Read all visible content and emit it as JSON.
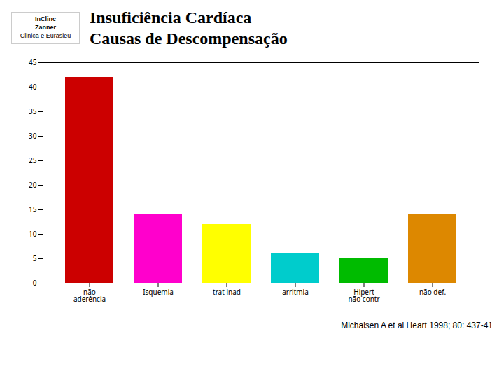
{
  "chart_data": {
    "type": "bar",
    "title": "Insuficiência Cardíaca",
    "subtitle": "Causas de Descompensação",
    "categories": [
      "não\naderência",
      "Isquemia",
      "trat inad",
      "arritmia",
      "Hipert\nnão contr",
      "não def."
    ],
    "values": [
      42,
      14,
      12,
      6,
      5,
      14
    ],
    "colors": [
      "#cc0000",
      "#ff00cc",
      "#ffff00",
      "#00cccc",
      "#00bb00",
      "#dd8800"
    ],
    "ylim": [
      0,
      45
    ],
    "yticks": [
      0,
      5,
      10,
      15,
      20,
      25,
      30,
      35,
      40,
      45
    ],
    "grid": false,
    "annotations": [
      "InClinc",
      "Zanner",
      "Clinica e Eurasieu",
      "Michalsen A et al Heart 1998; 80: 437-41"
    ]
  }
}
